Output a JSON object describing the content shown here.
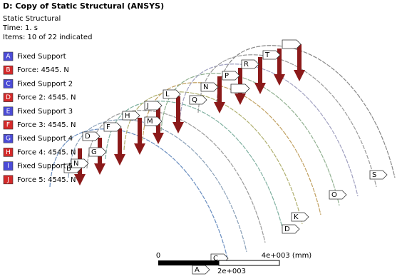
{
  "header": {
    "title": "D: Copy of Static Structural (ANSYS)",
    "lines": [
      "Static Structural",
      "Time: 1. s",
      "Items: 10 of 22 indicated"
    ]
  },
  "legend": [
    {
      "letter": "A",
      "label": "Fixed Support",
      "color": "#4b4bd6"
    },
    {
      "letter": "B",
      "label": "Force: 4545. N",
      "color": "#d42a2a"
    },
    {
      "letter": "C",
      "label": "Fixed Support 2",
      "color": "#4b4bd6"
    },
    {
      "letter": "D",
      "label": "Force 2: 4545. N",
      "color": "#d42a2a"
    },
    {
      "letter": "E",
      "label": "Fixed Support 3",
      "color": "#4b4bd6"
    },
    {
      "letter": "F",
      "label": "Force 3: 4545. N",
      "color": "#d42a2a"
    },
    {
      "letter": "G",
      "label": "Fixed Support 4",
      "color": "#4b4bd6"
    },
    {
      "letter": "H",
      "label": "Force 4: 4545. N",
      "color": "#d42a2a"
    },
    {
      "letter": "I",
      "label": "Fixed Support 5",
      "color": "#4b4bd6"
    },
    {
      "letter": "J",
      "label": "Force 5: 4545. N",
      "color": "#d42a2a"
    }
  ],
  "tags": [
    "B",
    "N",
    "G",
    "D",
    "F",
    "H",
    "M",
    "J",
    "L",
    "Q",
    "N",
    "P",
    "R",
    "T",
    "C",
    "A",
    "D",
    "K",
    "O",
    "S"
  ],
  "scale": {
    "start": "0",
    "end": "4e+003 (mm)",
    "mid": "2e+003"
  }
}
